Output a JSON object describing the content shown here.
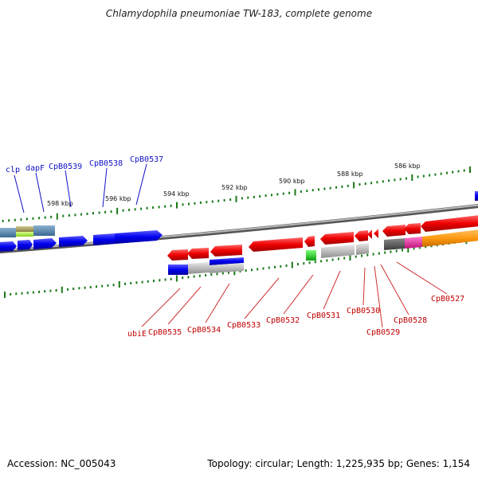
{
  "title": "Chlamydophila pneumoniae TW-183, complete genome",
  "footer": {
    "accession": "Accession: NC_005043",
    "summary": "Topology: circular; Length: 1,225,935 bp; Genes: 1,154"
  },
  "scale_labels": [
    "598 kbp",
    "596 kbp",
    "594 kbp",
    "592 kbp",
    "590 kbp",
    "588 kbp",
    "586 kbp"
  ],
  "forward_gene_labels": [
    "clp",
    "dapF",
    "CpB0539",
    "CpB0538",
    "CpB0537"
  ],
  "reverse_gene_labels": [
    "ubiE",
    "CpB0535",
    "CpB0534",
    "CpB0533",
    "CpB0532",
    "CpB0531",
    "CpB0530",
    "CpB0529",
    "CpB0528",
    "CpB0527"
  ],
  "colors": {
    "forward_strand": "#0000ee",
    "reverse_strand": "#ee0000",
    "label_forward": "#1010c8",
    "label_reverse": "#c00000",
    "tick": "#1a7a1a",
    "backbone": "#808080"
  }
}
